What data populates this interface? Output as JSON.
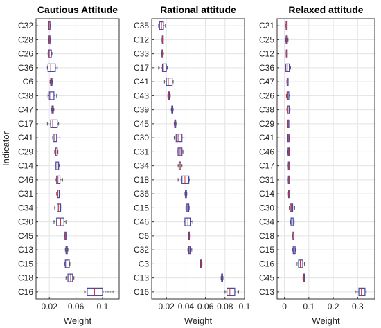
{
  "figure": {
    "ylabel": "Indicator"
  },
  "colors": {
    "box": "#4646a8",
    "median": "#cc3333",
    "whisker": "#555555",
    "grid": "#e3e3e3",
    "frame": "#333333"
  },
  "chart_data": [
    {
      "type": "box",
      "title": "Cautious Attitude",
      "xlabel": "Weight",
      "xlim": [
        0,
        0.125
      ],
      "xticks": [
        0.02,
        0.06,
        0.1
      ],
      "xtick_labels": [
        "0.02",
        "0.06",
        "0.1"
      ],
      "grid": true,
      "categories": [
        "C32",
        "C28",
        "C26",
        "C36",
        "C6",
        "C38",
        "C47",
        "C17",
        "C41",
        "C29",
        "C14",
        "C46",
        "C31",
        "C34",
        "C30",
        "C45",
        "C13",
        "C15",
        "C18",
        "C16"
      ],
      "boxes": [
        {
          "min": 0.019,
          "q1": 0.019,
          "median": 0.0195,
          "q3": 0.021,
          "max": 0.022
        },
        {
          "min": 0.019,
          "q1": 0.0195,
          "median": 0.02,
          "q3": 0.021,
          "max": 0.022
        },
        {
          "min": 0.018,
          "q1": 0.019,
          "median": 0.02,
          "q3": 0.023,
          "max": 0.024
        },
        {
          "min": 0.017,
          "q1": 0.018,
          "median": 0.022,
          "q3": 0.029,
          "max": 0.032
        },
        {
          "min": 0.021,
          "q1": 0.022,
          "median": 0.023,
          "q3": 0.024,
          "max": 0.025
        },
        {
          "min": 0.018,
          "q1": 0.02,
          "median": 0.022,
          "q3": 0.027,
          "max": 0.031
        },
        {
          "min": 0.023,
          "q1": 0.024,
          "median": 0.025,
          "q3": 0.026,
          "max": 0.027
        },
        {
          "min": 0.017,
          "q1": 0.022,
          "median": 0.025,
          "q3": 0.032,
          "max": 0.034
        },
        {
          "min": 0.025,
          "q1": 0.026,
          "median": 0.028,
          "q3": 0.031,
          "max": 0.036
        },
        {
          "min": 0.028,
          "q1": 0.029,
          "median": 0.03,
          "q3": 0.032,
          "max": 0.033
        },
        {
          "min": 0.03,
          "q1": 0.03,
          "median": 0.032,
          "q3": 0.034,
          "max": 0.035
        },
        {
          "min": 0.029,
          "q1": 0.031,
          "median": 0.033,
          "q3": 0.036,
          "max": 0.04
        },
        {
          "min": 0.031,
          "q1": 0.032,
          "median": 0.033,
          "q3": 0.035,
          "max": 0.036
        },
        {
          "min": 0.028,
          "q1": 0.032,
          "median": 0.034,
          "q3": 0.037,
          "max": 0.039
        },
        {
          "min": 0.027,
          "q1": 0.031,
          "median": 0.037,
          "q3": 0.042,
          "max": 0.045
        },
        {
          "min": 0.043,
          "q1": 0.0435,
          "median": 0.044,
          "q3": 0.0445,
          "max": 0.045
        },
        {
          "min": 0.044,
          "q1": 0.045,
          "median": 0.046,
          "q3": 0.047,
          "max": 0.048
        },
        {
          "min": 0.043,
          "q1": 0.044,
          "median": 0.046,
          "q3": 0.05,
          "max": 0.051
        },
        {
          "min": 0.045,
          "q1": 0.048,
          "median": 0.052,
          "q3": 0.055,
          "max": 0.057
        },
        {
          "min": 0.073,
          "q1": 0.077,
          "median": 0.088,
          "q3": 0.1,
          "max": 0.117
        }
      ]
    },
    {
      "type": "box",
      "title": "Rational attitude",
      "xlabel": "Weight",
      "xlim": [
        0.005,
        0.1
      ],
      "xticks": [
        0.02,
        0.04,
        0.06,
        0.08,
        0.1
      ],
      "xtick_labels": [
        "0.02",
        "0.04",
        "0.06",
        "0.08",
        "0.1"
      ],
      "grid": true,
      "categories": [
        "C35",
        "C12",
        "C33",
        "C17",
        "C41",
        "C43",
        "C39",
        "C45",
        "C30",
        "C31",
        "C34",
        "C18",
        "C36",
        "C15",
        "C46",
        "C6",
        "C32",
        "C3",
        "C13",
        "C16"
      ],
      "boxes": [
        {
          "min": 0.012,
          "q1": 0.013,
          "median": 0.015,
          "q3": 0.017,
          "max": 0.019
        },
        {
          "min": 0.0155,
          "q1": 0.0158,
          "median": 0.016,
          "q3": 0.0162,
          "max": 0.0165
        },
        {
          "min": 0.015,
          "q1": 0.0155,
          "median": 0.016,
          "q3": 0.0165,
          "max": 0.017
        },
        {
          "min": 0.012,
          "q1": 0.016,
          "median": 0.017,
          "q3": 0.02,
          "max": 0.021
        },
        {
          "min": 0.018,
          "q1": 0.02,
          "median": 0.022,
          "q3": 0.026,
          "max": 0.027
        },
        {
          "min": 0.0215,
          "q1": 0.022,
          "median": 0.0225,
          "q3": 0.023,
          "max": 0.024
        },
        {
          "min": 0.025,
          "q1": 0.0255,
          "median": 0.026,
          "q3": 0.0265,
          "max": 0.027
        },
        {
          "min": 0.028,
          "q1": 0.0285,
          "median": 0.029,
          "q3": 0.0295,
          "max": 0.03
        },
        {
          "min": 0.028,
          "q1": 0.03,
          "median": 0.032,
          "q3": 0.036,
          "max": 0.038
        },
        {
          "min": 0.031,
          "q1": 0.032,
          "median": 0.034,
          "q3": 0.036,
          "max": 0.037
        },
        {
          "min": 0.032,
          "q1": 0.033,
          "median": 0.034,
          "q3": 0.035,
          "max": 0.036
        },
        {
          "min": 0.032,
          "q1": 0.036,
          "median": 0.039,
          "q3": 0.043,
          "max": 0.044
        },
        {
          "min": 0.039,
          "q1": 0.0395,
          "median": 0.04,
          "q3": 0.0405,
          "max": 0.041
        },
        {
          "min": 0.04,
          "q1": 0.041,
          "median": 0.042,
          "q3": 0.043,
          "max": 0.044
        },
        {
          "min": 0.038,
          "q1": 0.039,
          "median": 0.042,
          "q3": 0.045,
          "max": 0.047
        },
        {
          "min": 0.0425,
          "q1": 0.043,
          "median": 0.0435,
          "q3": 0.044,
          "max": 0.0445
        },
        {
          "min": 0.042,
          "q1": 0.043,
          "median": 0.044,
          "q3": 0.045,
          "max": 0.046
        },
        {
          "min": 0.0545,
          "q1": 0.055,
          "median": 0.0555,
          "q3": 0.056,
          "max": 0.0565
        },
        {
          "min": 0.076,
          "q1": 0.0765,
          "median": 0.077,
          "q3": 0.0775,
          "max": 0.078
        },
        {
          "min": 0.08,
          "q1": 0.082,
          "median": 0.085,
          "q3": 0.09,
          "max": 0.094
        }
      ]
    },
    {
      "type": "box",
      "title": "Relaxed attitude",
      "xlabel": "Weight",
      "xlim": [
        -0.03,
        0.37
      ],
      "xticks": [
        0,
        0.1,
        0.2,
        0.3
      ],
      "xtick_labels": [
        "0",
        "0.1",
        "0.2",
        "0.3"
      ],
      "grid": true,
      "categories": [
        "C21",
        "C25",
        "C12",
        "C36",
        "C47",
        "C26",
        "C38",
        "C29",
        "C41",
        "C46",
        "C17",
        "C31",
        "C14",
        "C30",
        "C34",
        "C18",
        "C15",
        "C16",
        "C45",
        "C13"
      ],
      "boxes": [
        {
          "min": 0.006,
          "q1": 0.007,
          "median": 0.008,
          "q3": 0.009,
          "max": 0.01
        },
        {
          "min": 0.005,
          "q1": 0.007,
          "median": 0.009,
          "q3": 0.012,
          "max": 0.015
        },
        {
          "min": 0.007,
          "q1": 0.0075,
          "median": 0.008,
          "q3": 0.0085,
          "max": 0.009
        },
        {
          "min": 0.003,
          "q1": 0.006,
          "median": 0.012,
          "q3": 0.02,
          "max": 0.025
        },
        {
          "min": 0.01,
          "q1": 0.011,
          "median": 0.012,
          "q3": 0.013,
          "max": 0.014
        },
        {
          "min": 0.008,
          "q1": 0.011,
          "median": 0.014,
          "q3": 0.018,
          "max": 0.022
        },
        {
          "min": 0.01,
          "q1": 0.012,
          "median": 0.015,
          "q3": 0.02,
          "max": 0.023
        },
        {
          "min": 0.013,
          "q1": 0.014,
          "median": 0.015,
          "q3": 0.016,
          "max": 0.017
        },
        {
          "min": 0.012,
          "q1": 0.014,
          "median": 0.016,
          "q3": 0.019,
          "max": 0.02
        },
        {
          "min": 0.013,
          "q1": 0.015,
          "median": 0.017,
          "q3": 0.02,
          "max": 0.021
        },
        {
          "min": 0.015,
          "q1": 0.016,
          "median": 0.017,
          "q3": 0.018,
          "max": 0.019
        },
        {
          "min": 0.015,
          "q1": 0.016,
          "median": 0.017,
          "q3": 0.019,
          "max": 0.02
        },
        {
          "min": 0.016,
          "q1": 0.017,
          "median": 0.018,
          "q3": 0.019,
          "max": 0.02
        },
        {
          "min": 0.02,
          "q1": 0.024,
          "median": 0.028,
          "q3": 0.034,
          "max": 0.042
        },
        {
          "min": 0.024,
          "q1": 0.027,
          "median": 0.031,
          "q3": 0.036,
          "max": 0.04
        },
        {
          "min": 0.034,
          "q1": 0.035,
          "median": 0.036,
          "q3": 0.037,
          "max": 0.038
        },
        {
          "min": 0.034,
          "q1": 0.036,
          "median": 0.04,
          "q3": 0.044,
          "max": 0.046
        },
        {
          "min": 0.052,
          "q1": 0.058,
          "median": 0.065,
          "q3": 0.075,
          "max": 0.082
        },
        {
          "min": 0.076,
          "q1": 0.078,
          "median": 0.08,
          "q3": 0.082,
          "max": 0.084
        },
        {
          "min": 0.29,
          "q1": 0.305,
          "median": 0.315,
          "q3": 0.33,
          "max": 0.335
        }
      ]
    }
  ]
}
